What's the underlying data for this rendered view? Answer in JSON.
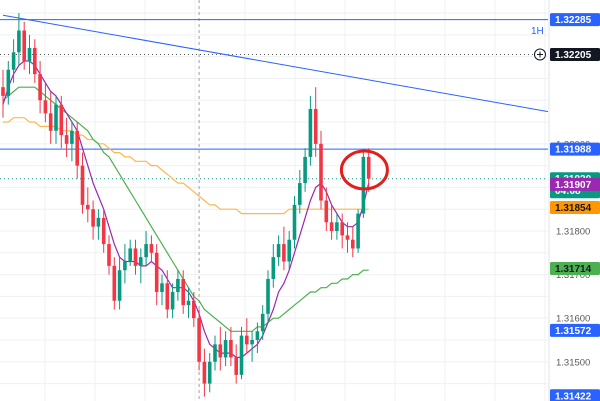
{
  "chart_data": {
    "type": "candlestick",
    "timeframe": "1H",
    "ylim": [
      1.3141,
      1.3233
    ],
    "price_ticks": [
      "1.32200",
      "1.32000",
      "1.31800",
      "1.31700",
      "1.31600",
      "1.31500"
    ],
    "price_labels": [
      {
        "key": "hline_top",
        "value": 1.32285,
        "text": "1.32285",
        "bg": "#2962ff",
        "fg": "#ffffff",
        "outlined": false
      },
      {
        "key": "cursor",
        "value": 1.32205,
        "text": "1.32205",
        "bg": "#131722",
        "fg": "#ffffff",
        "outlined": false
      },
      {
        "key": "hline_mid",
        "value": 1.31988,
        "text": "1.31988",
        "bg": "#2962ff",
        "fg": "#ffffff",
        "outlined": false
      },
      {
        "key": "last_price",
        "value": 1.3192,
        "text": "1.31920",
        "subtext": "04:08",
        "bg": "#089981",
        "fg": "#ffffff",
        "outlined": false
      },
      {
        "key": "ma_fast",
        "value": 1.31907,
        "text": "1.31907",
        "bg": "#9c27b0",
        "fg": "#ffffff",
        "outlined": false
      },
      {
        "key": "ma_mid",
        "value": 1.31854,
        "text": "1.31854",
        "bg": "#ff9800",
        "fg": "#131722",
        "outlined": false
      },
      {
        "key": "ma_slow",
        "value": 1.31714,
        "text": "1.31714",
        "bg": "#4caf50",
        "fg": "#131722",
        "outlined": false
      },
      {
        "key": "hline_bottom",
        "value": 1.31572,
        "text": "1.31572",
        "bg": "#2962ff",
        "fg": "#ffffff",
        "outlined": false
      },
      {
        "key": "low_mark",
        "value": 1.31422,
        "text": "1.31422",
        "bg": "#2962ff",
        "fg": "#ffffff",
        "outlined": false
      }
    ],
    "horizontal_lines": [
      {
        "value": 1.32285,
        "color": "#2962ff"
      },
      {
        "value": 1.31988,
        "color": "#2962ff"
      }
    ],
    "dotted_lines": [
      {
        "value": 1.32205,
        "color": "#555555"
      },
      {
        "value": 1.3192,
        "color": "#089981"
      }
    ],
    "candles": [
      [
        1.3213,
        1.3217,
        1.3206,
        1.3211
      ],
      [
        1.3211,
        1.3219,
        1.3209,
        1.3217
      ],
      [
        1.3217,
        1.3224,
        1.3214,
        1.3221
      ],
      [
        1.3221,
        1.323,
        1.3218,
        1.3226
      ],
      [
        1.3226,
        1.3228,
        1.3217,
        1.3219
      ],
      [
        1.3219,
        1.3225,
        1.3216,
        1.3222
      ],
      [
        1.3222,
        1.3224,
        1.3214,
        1.3216
      ],
      [
        1.3216,
        1.3219,
        1.3207,
        1.321
      ],
      [
        1.321,
        1.3214,
        1.3205,
        1.3207
      ],
      [
        1.3207,
        1.3212,
        1.32,
        1.3203
      ],
      [
        1.3203,
        1.3211,
        1.32,
        1.3209
      ],
      [
        1.3209,
        1.3211,
        1.3199,
        1.3202
      ],
      [
        1.3202,
        1.3206,
        1.3197,
        1.32
      ],
      [
        1.32,
        1.3205,
        1.3196,
        1.3203
      ],
      [
        1.3203,
        1.3205,
        1.3192,
        1.3195
      ],
      [
        1.3195,
        1.3198,
        1.3184,
        1.3186
      ],
      [
        1.3186,
        1.319,
        1.3182,
        1.3185
      ],
      [
        1.3185,
        1.3187,
        1.3178,
        1.3181
      ],
      [
        1.3181,
        1.3185,
        1.3178,
        1.3183
      ],
      [
        1.3183,
        1.3185,
        1.3175,
        1.3177
      ],
      [
        1.3177,
        1.3179,
        1.317,
        1.3172
      ],
      [
        1.3172,
        1.3174,
        1.3162,
        1.3164
      ],
      [
        1.3164,
        1.3174,
        1.3162,
        1.3171
      ],
      [
        1.3171,
        1.3177,
        1.3168,
        1.3173
      ],
      [
        1.3173,
        1.3178,
        1.3172,
        1.3176
      ],
      [
        1.3176,
        1.3178,
        1.317,
        1.3172
      ],
      [
        1.3172,
        1.3176,
        1.3168,
        1.3174
      ],
      [
        1.3174,
        1.318,
        1.3172,
        1.3177
      ],
      [
        1.3177,
        1.3179,
        1.3173,
        1.3175
      ],
      [
        1.3175,
        1.3177,
        1.3163,
        1.3166
      ],
      [
        1.3166,
        1.317,
        1.3163,
        1.3168
      ],
      [
        1.3168,
        1.3171,
        1.316,
        1.3162
      ],
      [
        1.3162,
        1.3168,
        1.316,
        1.3166
      ],
      [
        1.3166,
        1.3171,
        1.3164,
        1.3169
      ],
      [
        1.3169,
        1.3171,
        1.3161,
        1.3163
      ],
      [
        1.3163,
        1.3167,
        1.316,
        1.3164
      ],
      [
        1.3164,
        1.3166,
        1.3158,
        1.316
      ],
      [
        1.316,
        1.3162,
        1.3148,
        1.315
      ],
      [
        1.315,
        1.3153,
        1.3142,
        1.3145
      ],
      [
        1.3145,
        1.3152,
        1.3143,
        1.315
      ],
      [
        1.315,
        1.3156,
        1.3148,
        1.3154
      ],
      [
        1.3154,
        1.3158,
        1.3148,
        1.3151
      ],
      [
        1.3151,
        1.3157,
        1.3149,
        1.3155
      ],
      [
        1.3155,
        1.3158,
        1.3149,
        1.3151
      ],
      [
        1.3151,
        1.3154,
        1.3145,
        1.3147
      ],
      [
        1.3147,
        1.3158,
        1.3146,
        1.3156
      ],
      [
        1.3156,
        1.316,
        1.3152,
        1.3154
      ],
      [
        1.3154,
        1.3157,
        1.315,
        1.3155
      ],
      [
        1.3155,
        1.3159,
        1.3152,
        1.3157
      ],
      [
        1.3157,
        1.3163,
        1.3155,
        1.3161
      ],
      [
        1.3161,
        1.3171,
        1.3159,
        1.3169
      ],
      [
        1.3169,
        1.3177,
        1.3167,
        1.3174
      ],
      [
        1.3174,
        1.3179,
        1.3172,
        1.3177
      ],
      [
        1.3177,
        1.3181,
        1.3171,
        1.3173
      ],
      [
        1.3173,
        1.318,
        1.3171,
        1.3178
      ],
      [
        1.3178,
        1.3188,
        1.3176,
        1.3186
      ],
      [
        1.3186,
        1.3194,
        1.3184,
        1.3191
      ],
      [
        1.3191,
        1.3199,
        1.3189,
        1.3197
      ],
      [
        1.3197,
        1.3211,
        1.3195,
        1.3208
      ],
      [
        1.3208,
        1.3213,
        1.3197,
        1.32
      ],
      [
        1.32,
        1.3203,
        1.3185,
        1.3187
      ],
      [
        1.3187,
        1.319,
        1.318,
        1.3182
      ],
      [
        1.3182,
        1.3186,
        1.3178,
        1.318
      ],
      [
        1.318,
        1.3184,
        1.3178,
        1.3182
      ],
      [
        1.3182,
        1.3184,
        1.3176,
        1.3179
      ],
      [
        1.3179,
        1.3182,
        1.3175,
        1.3178
      ],
      [
        1.3178,
        1.3181,
        1.3174,
        1.3176
      ],
      [
        1.3176,
        1.3185,
        1.3175,
        1.3184
      ],
      [
        1.3184,
        1.3198,
        1.3183,
        1.3197
      ],
      [
        1.3197,
        1.3199,
        1.3189,
        1.3192
      ]
    ],
    "ma_fast": [
      1.3209,
      1.3213,
      1.3216,
      1.3218,
      1.3219,
      1.3219,
      1.3218,
      1.3216,
      1.3214,
      1.3212,
      1.3211,
      1.3209,
      1.3207,
      1.3205,
      1.3203,
      1.3199,
      1.3195,
      1.3191,
      1.3188,
      1.3185,
      1.3181,
      1.3177,
      1.3174,
      1.3173,
      1.3173,
      1.3173,
      1.3172,
      1.3172,
      1.3173,
      1.3172,
      1.3171,
      1.3169,
      1.3167,
      1.3167,
      1.3167,
      1.3166,
      1.3164,
      1.3161,
      1.3157,
      1.3154,
      1.3153,
      1.3152,
      1.3152,
      1.3152,
      1.3151,
      1.3151,
      1.3152,
      1.3153,
      1.3154,
      1.3156,
      1.3159,
      1.3162,
      1.3166,
      1.3168,
      1.3171,
      1.3175,
      1.3179,
      1.3183,
      1.3187,
      1.319,
      1.3191,
      1.3189,
      1.3186,
      1.3184,
      1.3182,
      1.3181,
      1.3181,
      1.3182,
      1.3186,
      1.3191
    ],
    "ma_mid": [
      1.3205,
      1.3205,
      1.3206,
      1.3206,
      1.3206,
      1.3205,
      1.3205,
      1.3204,
      1.3204,
      1.3204,
      1.3204,
      1.3203,
      1.3203,
      1.3203,
      1.3202,
      1.3202,
      1.3201,
      1.3201,
      1.32,
      1.32,
      1.3199,
      1.3198,
      1.3198,
      1.3197,
      1.3197,
      1.3196,
      1.3196,
      1.3196,
      1.3195,
      1.3195,
      1.3194,
      1.3193,
      1.3192,
      1.3191,
      1.3191,
      1.319,
      1.3189,
      1.3188,
      1.3187,
      1.3186,
      1.3186,
      1.3185,
      1.3185,
      1.3185,
      1.3185,
      1.3184,
      1.3184,
      1.3184,
      1.3184,
      1.3184,
      1.3184,
      1.3184,
      1.3184,
      1.3184,
      1.3185,
      1.3185,
      1.3185,
      1.3185,
      1.3185,
      1.3185,
      1.3185,
      1.3185,
      1.3185,
      1.3185,
      1.3185,
      1.3185,
      1.3185,
      1.3185,
      1.3185,
      1.3185
    ],
    "ma_slow": [
      1.321,
      1.3211,
      1.3212,
      1.3213,
      1.3213,
      1.3213,
      1.3213,
      1.3212,
      1.3211,
      1.321,
      1.3209,
      1.3208,
      1.3207,
      1.3206,
      1.3205,
      1.3204,
      1.3203,
      1.3201,
      1.32,
      1.3198,
      1.3197,
      1.3195,
      1.3193,
      1.3191,
      1.3189,
      1.3187,
      1.3185,
      1.3183,
      1.3181,
      1.3179,
      1.3177,
      1.3175,
      1.3173,
      1.3171,
      1.3169,
      1.3167,
      1.3165,
      1.3164,
      1.3162,
      1.3161,
      1.316,
      1.3159,
      1.3158,
      1.3157,
      1.3157,
      1.3157,
      1.3157,
      1.3157,
      1.3158,
      1.3158,
      1.3159,
      1.316,
      1.316,
      1.3161,
      1.3162,
      1.3163,
      1.3164,
      1.3165,
      1.3166,
      1.3166,
      1.3167,
      1.3167,
      1.3168,
      1.3168,
      1.3169,
      1.3169,
      1.317,
      1.317,
      1.3171,
      1.3171
    ],
    "colors": {
      "up": "#089981",
      "down": "#f23645",
      "ma_fast": "#9c27b0",
      "ma_mid": "#ffb74d",
      "ma_slow": "#4caf50",
      "trendline": "#2962ff",
      "highlight_circle": "#e0201c"
    }
  }
}
